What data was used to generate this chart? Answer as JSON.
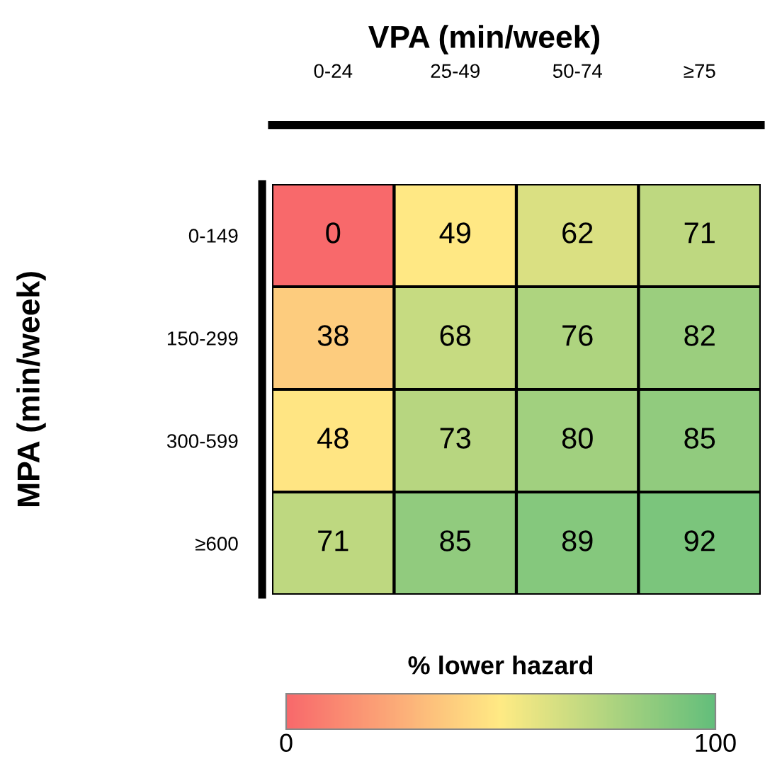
{
  "chart_data": {
    "type": "heatmap",
    "title": "VPA (min/week)",
    "ylabel": "MPA (min/week)",
    "clabel": "% lower hazard",
    "categories": [
      "0-24",
      "25-49",
      "50-74",
      "≥75"
    ],
    "y_categories": [
      "0-149",
      "150-299",
      "300-599",
      "≥600"
    ],
    "cells": [
      [
        0,
        49,
        62,
        71
      ],
      [
        38,
        68,
        76,
        82
      ],
      [
        48,
        73,
        80,
        85
      ],
      [
        71,
        85,
        89,
        92
      ]
    ],
    "colors": [
      "#f8696b",
      "#ffeb84",
      "#63be7b"
    ],
    "clim": [
      0,
      100
    ],
    "cticks": [
      0,
      100
    ],
    "data_labels": true
  }
}
